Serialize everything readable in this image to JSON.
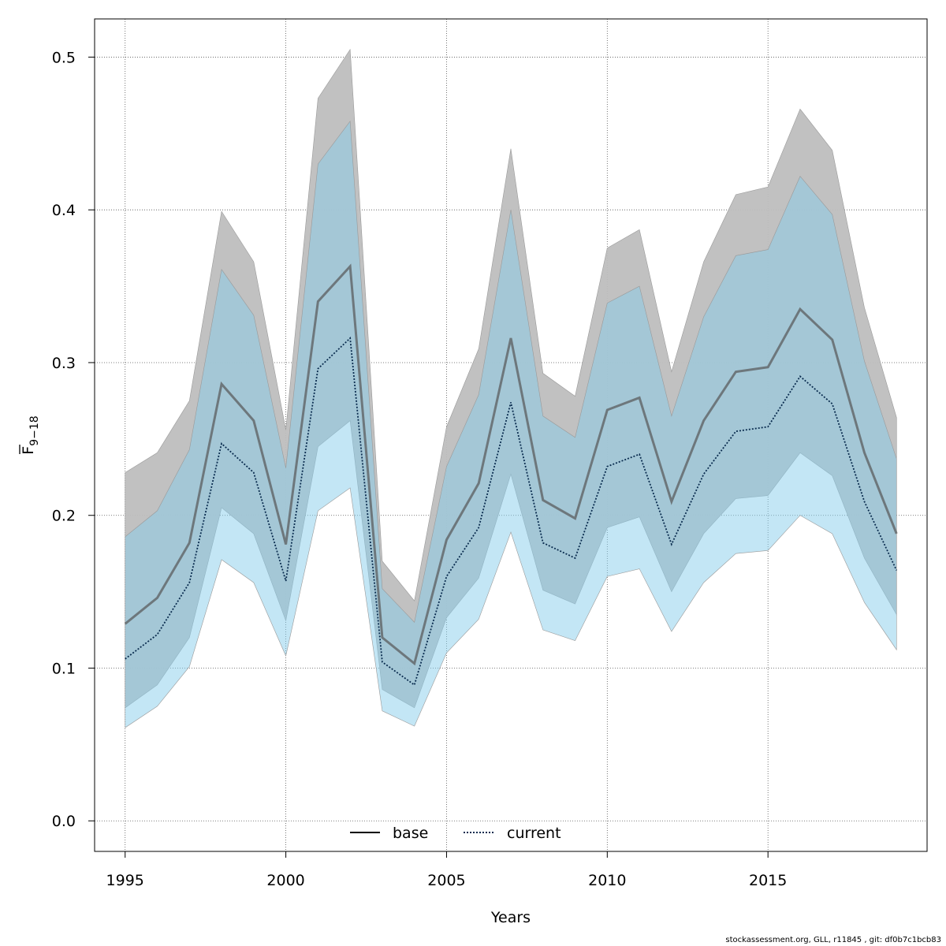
{
  "chart_data": {
    "type": "line",
    "title": "",
    "xlabel": "Years",
    "ylabel_main": "F",
    "ylabel_sub": "9−18",
    "xlim": [
      1994.05,
      2019.95
    ],
    "ylim": [
      -0.02,
      0.525
    ],
    "x_ticks": [
      1995,
      2000,
      2005,
      2010,
      2015
    ],
    "y_ticks": [
      0.0,
      0.1,
      0.2,
      0.3,
      0.4,
      0.5
    ],
    "y_tick_labels": [
      "0.0",
      "0.1",
      "0.2",
      "0.3",
      "0.4",
      "0.5"
    ],
    "grid": true,
    "legend_position": "bottom",
    "x": [
      1995,
      1996,
      1997,
      1998,
      1999,
      2000,
      2001,
      2002,
      2003,
      2004,
      2005,
      2006,
      2007,
      2008,
      2009,
      2010,
      2011,
      2012,
      2013,
      2014,
      2015,
      2016,
      2017,
      2018,
      2019
    ],
    "series": [
      {
        "name": "base",
        "line_style": "solid",
        "line_color": "#555555",
        "band_color": "#bebebe",
        "values": [
          0.129,
          0.146,
          0.182,
          0.286,
          0.262,
          0.181,
          0.34,
          0.363,
          0.12,
          0.103,
          0.184,
          0.221,
          0.316,
          0.21,
          0.198,
          0.269,
          0.277,
          0.209,
          0.262,
          0.294,
          0.297,
          0.335,
          0.315,
          0.241,
          0.188
        ],
        "lower": [
          0.074,
          0.089,
          0.12,
          0.205,
          0.188,
          0.131,
          0.245,
          0.262,
          0.086,
          0.074,
          0.133,
          0.159,
          0.227,
          0.151,
          0.142,
          0.192,
          0.199,
          0.15,
          0.188,
          0.211,
          0.213,
          0.241,
          0.226,
          0.172,
          0.135
        ],
        "upper": [
          0.228,
          0.241,
          0.275,
          0.399,
          0.366,
          0.256,
          0.473,
          0.505,
          0.17,
          0.144,
          0.258,
          0.309,
          0.44,
          0.293,
          0.278,
          0.375,
          0.387,
          0.294,
          0.366,
          0.41,
          0.415,
          0.466,
          0.439,
          0.336,
          0.264
        ]
      },
      {
        "name": "current",
        "line_style": "dotted",
        "line_color": "#0a2c4f",
        "band_color": "#87ceeb",
        "values": [
          0.106,
          0.122,
          0.156,
          0.247,
          0.228,
          0.157,
          0.296,
          0.316,
          0.104,
          0.089,
          0.16,
          0.192,
          0.274,
          0.182,
          0.172,
          0.232,
          0.24,
          0.181,
          0.227,
          0.255,
          0.258,
          0.291,
          0.273,
          0.209,
          0.164
        ],
        "lower": [
          0.061,
          0.075,
          0.101,
          0.171,
          0.156,
          0.108,
          0.203,
          0.218,
          0.072,
          0.062,
          0.11,
          0.132,
          0.189,
          0.125,
          0.118,
          0.16,
          0.165,
          0.124,
          0.156,
          0.175,
          0.177,
          0.2,
          0.188,
          0.143,
          0.112
        ],
        "upper": [
          0.186,
          0.203,
          0.243,
          0.361,
          0.331,
          0.231,
          0.43,
          0.458,
          0.152,
          0.13,
          0.232,
          0.279,
          0.4,
          0.265,
          0.251,
          0.339,
          0.35,
          0.265,
          0.33,
          0.37,
          0.374,
          0.422,
          0.397,
          0.301,
          0.237
        ]
      }
    ]
  },
  "footer": "stockassessment.org, GLL, r11845 , git: df0b7c1bcb83"
}
